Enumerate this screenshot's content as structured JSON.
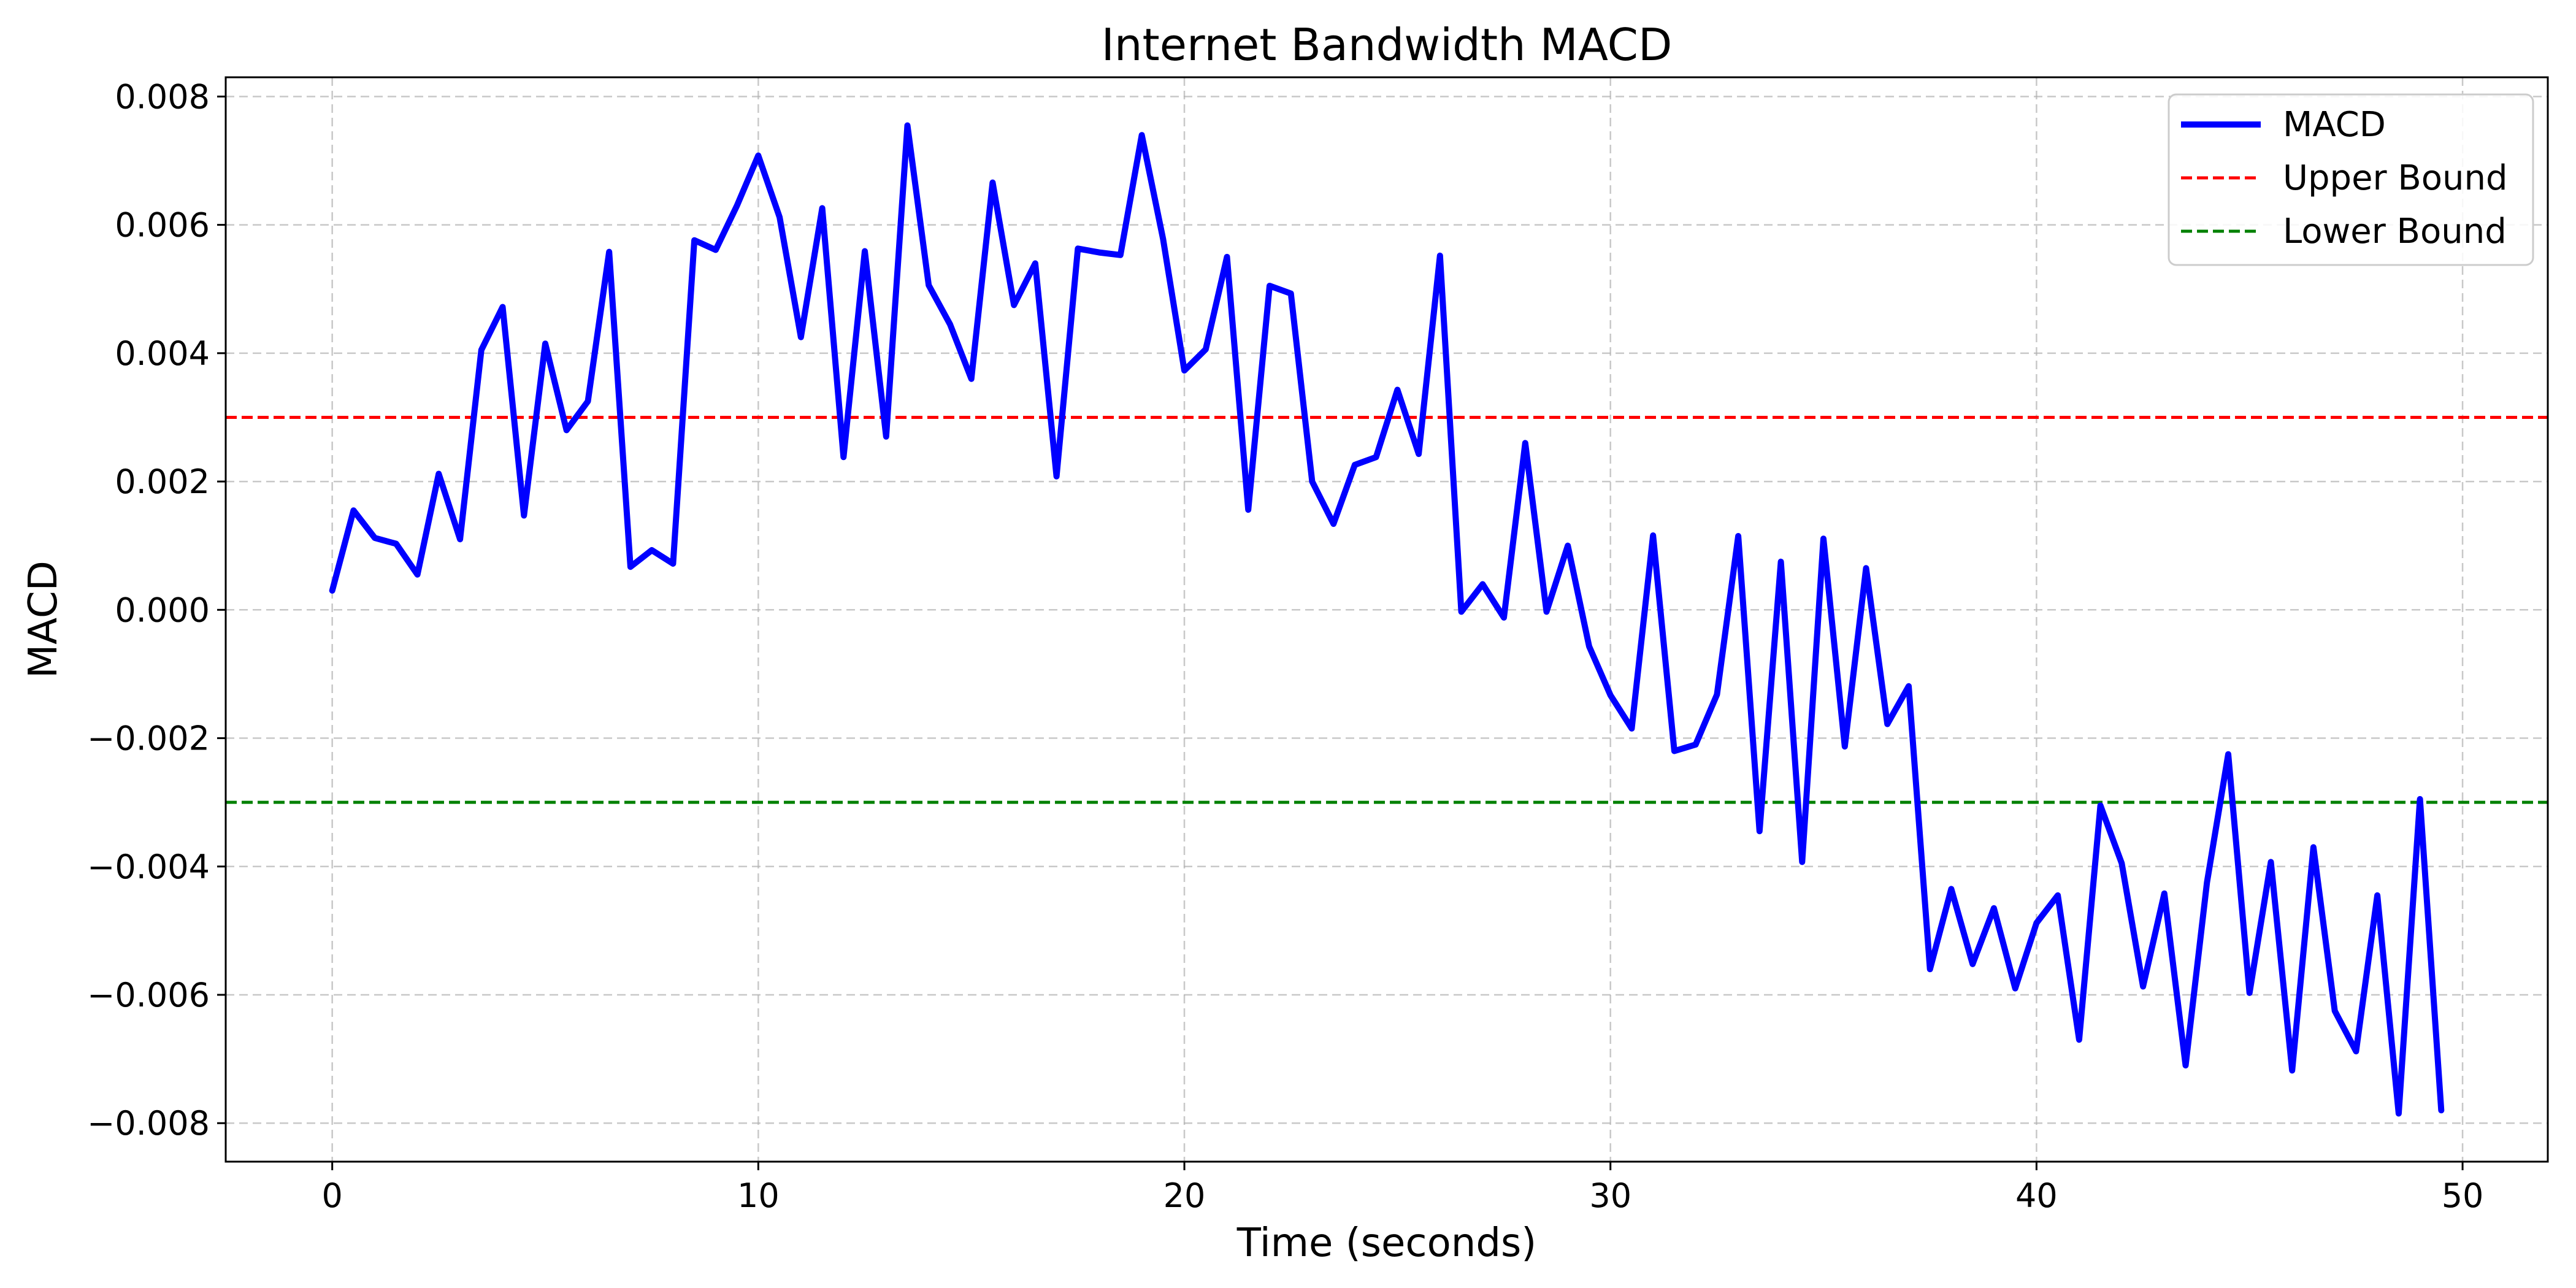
{
  "chart_data": {
    "type": "line",
    "title": "Internet Bandwidth MACD",
    "xlabel": "Time (seconds)",
    "ylabel": "MACD",
    "xlim": [
      -2.5,
      52
    ],
    "ylim": [
      -0.0086,
      0.0083
    ],
    "x_ticks": [
      0,
      10,
      20,
      30,
      40,
      50
    ],
    "x_tick_labels": [
      "0",
      "10",
      "20",
      "30",
      "40",
      "50"
    ],
    "y_ticks": [
      -0.008,
      -0.006,
      -0.004,
      -0.002,
      0.0,
      0.002,
      0.004,
      0.006,
      0.008
    ],
    "y_tick_labels": [
      "−0.008",
      "−0.006",
      "−0.004",
      "−0.002",
      "0.000",
      "0.002",
      "0.004",
      "0.006",
      "0.008"
    ],
    "grid": true,
    "legend_position": "top-right",
    "series": [
      {
        "name": "MACD",
        "color": "#0000ff",
        "style": "solid",
        "x": [
          0,
          0.5,
          1,
          1.5,
          2,
          2.5,
          3,
          3.5,
          4,
          4.5,
          5,
          5.5,
          6,
          6.5,
          7,
          7.5,
          8,
          8.5,
          9,
          9.5,
          10,
          10.5,
          11,
          11.5,
          12,
          12.5,
          13,
          13.5,
          14,
          14.5,
          15,
          15.5,
          16,
          16.5,
          17,
          17.5,
          18,
          18.5,
          19,
          19.5,
          20,
          20.5,
          21,
          21.5,
          22,
          22.5,
          23,
          23.5,
          24,
          24.5,
          25,
          25.5,
          26,
          26.5,
          27,
          27.5,
          28,
          28.5,
          29,
          29.5,
          30,
          30.5,
          31,
          31.5,
          32,
          32.5,
          33,
          33.5,
          34,
          34.5,
          35,
          35.5,
          36,
          36.5,
          37,
          37.5,
          38,
          38.5,
          39,
          39.5,
          40,
          40.5,
          41,
          41.5,
          42,
          42.5,
          43,
          43.5,
          44,
          44.5,
          45,
          45.5,
          46,
          46.5,
          47,
          47.5,
          48,
          48.5,
          49,
          49.5
        ],
        "y": [
          0.0003,
          0.00155,
          0.00112,
          0.00103,
          0.00055,
          0.00212,
          0.0011,
          0.00405,
          0.00472,
          0.00147,
          0.00415,
          0.0028,
          0.00325,
          0.00558,
          0.00067,
          0.00093,
          0.00072,
          0.00576,
          0.00561,
          0.0063,
          0.00708,
          0.00612,
          0.00425,
          0.00626,
          0.00238,
          0.00559,
          0.0027,
          0.00755,
          0.00506,
          0.00445,
          0.0036,
          0.00666,
          0.00475,
          0.0054,
          0.00208,
          0.00563,
          0.00557,
          0.00553,
          0.0074,
          0.00578,
          0.00373,
          0.00406,
          0.0055,
          0.00156,
          0.00505,
          0.00493,
          0.002,
          0.00134,
          0.00226,
          0.00238,
          0.00343,
          0.00243,
          0.00552,
          -3e-05,
          0.0004,
          -0.00012,
          0.0026,
          -3e-05,
          0.001,
          -0.00057,
          -0.00133,
          -0.00185,
          0.00116,
          -0.0022,
          -0.0021,
          -0.00132,
          0.00115,
          -0.00345,
          0.00075,
          -0.00393,
          0.00111,
          -0.00213,
          0.00065,
          -0.00178,
          -0.00119,
          -0.0056,
          -0.00435,
          -0.00552,
          -0.00465,
          -0.0059,
          -0.00488,
          -0.00445,
          -0.0067,
          -0.00305,
          -0.00395,
          -0.00587,
          -0.00442,
          -0.0071,
          -0.00425,
          -0.00225,
          -0.00597,
          -0.00393,
          -0.00718,
          -0.0037,
          -0.00625,
          -0.00688,
          -0.00445,
          -0.00785,
          -0.00295,
          -0.0078
        ]
      }
    ],
    "reference_lines": [
      {
        "name": "Upper Bound",
        "y": 0.003,
        "color": "#ff0000",
        "style": "dashed"
      },
      {
        "name": "Lower Bound",
        "y": -0.003,
        "color": "#008000",
        "style": "dashed"
      }
    ]
  }
}
